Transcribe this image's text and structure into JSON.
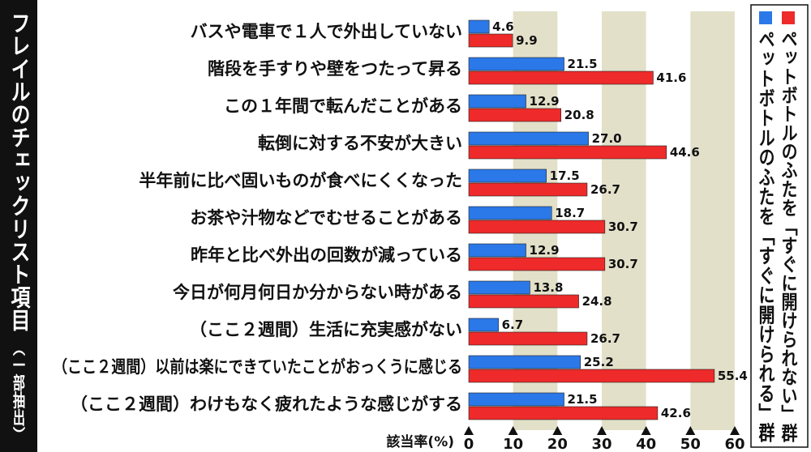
{
  "chart_data": {
    "type": "bar",
    "orientation": "horizontal",
    "side_title": "フレイルのチェックリスト項目",
    "side_subtitle": "（一部抽出）",
    "xlabel": "該当率(%)",
    "xlim": [
      0,
      60
    ],
    "ticks": [
      "0",
      "10",
      "20",
      "30",
      "40",
      "50",
      "60"
    ],
    "colors": {
      "series1": "#2b78e8",
      "series2": "#ee2a2a",
      "band": "#e3e0c9"
    },
    "categories": [
      "バスや電車で１人で外出していない",
      "階段を手すりや壁をつたって昇る",
      "この１年間で転んだことがある",
      "転倒に対する不安が大きい",
      "半年前に比べ固いものが食べにくくなった",
      "お茶や汁物などでむせることがある",
      "昨年と比べ外出の回数が減っている",
      "今日が何月何日か分からない時がある",
      "（ここ２週間）生活に充実感がない",
      "（ここ２週間）以前は楽にできていたことがおっくうに感じる",
      "（ここ２週間）わけもなく疲れたような感じがする"
    ],
    "series": [
      {
        "name": "ペットボトルのふたを「すぐに開けられる」群",
        "values": [
          4.6,
          21.5,
          12.9,
          27.0,
          17.5,
          18.7,
          12.9,
          13.8,
          6.7,
          25.2,
          21.5
        ],
        "labels": [
          "4.6",
          "21.5",
          "12.9",
          "27.0",
          "17.5",
          "18.7",
          "12.9",
          "13.8",
          "6.7",
          "25.2",
          "21.5"
        ]
      },
      {
        "name": "ペットボトルのふたを「すぐに開けられない」群",
        "values": [
          9.9,
          41.6,
          20.8,
          44.6,
          26.7,
          30.7,
          30.7,
          24.8,
          26.7,
          55.4,
          42.6
        ],
        "labels": [
          "9.9",
          "41.6",
          "20.8",
          "44.6",
          "26.7",
          "30.7",
          "30.7",
          "24.8",
          "26.7",
          "55.4",
          "42.6"
        ]
      }
    ],
    "legend": {
      "position": "right",
      "entries": [
        "ペットボトルのふたを「すぐに開けられない」群",
        "ペットボトルのふたを「すぐに開けられる」群"
      ]
    }
  }
}
